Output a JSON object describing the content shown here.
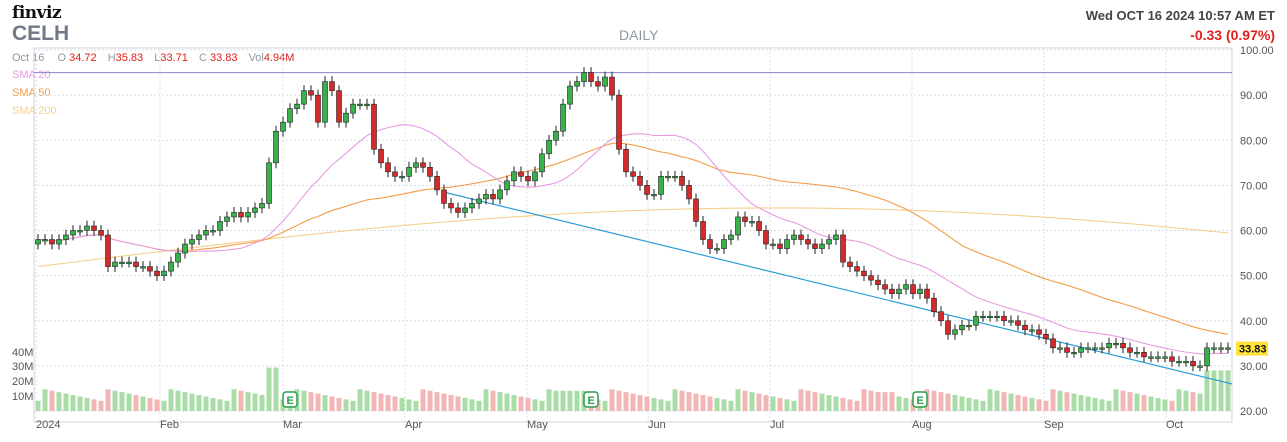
{
  "header": {
    "logo": "finviz",
    "ticker": "CELH",
    "period": "DAILY",
    "datetime": "Wed OCT 16 2024 10:57 AM ET",
    "change": "-0.33 (0.97%)"
  },
  "ohlc": {
    "date": "Oct 16",
    "o_label": "O",
    "o": "34.72",
    "h_label": "H",
    "h": "35.83",
    "l_label": "L",
    "l": "33.71",
    "c_label": "C",
    "c": "33.83",
    "vol_label": "Vol",
    "vol": "4.94M"
  },
  "legend": [
    {
      "label": "SMA 20",
      "color": "#e79be3"
    },
    {
      "label": "SMA 50",
      "color": "#f49c46"
    },
    {
      "label": "SMA 200",
      "color": "#f5cf8e"
    }
  ],
  "colors": {
    "up": "#36b24a",
    "down": "#d62a2a",
    "trendline": "#2b9fd8",
    "resistance": "#8a82c8",
    "last_price_bg": "#ffe33a",
    "grid": "#d8dde4",
    "vol_up": "#a9dca7",
    "vol_down": "#f3b6b6"
  },
  "chart_data": {
    "type": "candlestick",
    "title": "CELH DAILY",
    "x_labels": [
      "2024",
      "Feb",
      "Mar",
      "Apr",
      "May",
      "Jun",
      "Jul",
      "Aug",
      "Sep",
      "Oct"
    ],
    "y_ticks": [
      "100.00",
      "90.00",
      "80.00",
      "70.00",
      "60.00",
      "50.00",
      "40.00",
      "30.00",
      "20.00"
    ],
    "vol_ticks": [
      "40M",
      "30M",
      "20M",
      "10M"
    ],
    "last_price": "33.83",
    "resistance_level": 95,
    "trendline": {
      "from": [
        68.5,
        50.4
      ],
      "to": [
        26.0,
        28.5
      ]
    },
    "earnings_markers": [
      "E",
      "E",
      "E"
    ],
    "close": [
      58,
      58,
      57,
      58,
      59,
      60,
      60,
      61,
      60,
      59,
      52,
      53,
      53,
      53,
      52,
      52,
      51,
      50,
      51,
      53,
      55,
      57,
      58,
      59,
      60,
      60,
      62,
      63,
      64,
      63,
      64,
      65,
      66,
      75,
      82,
      84,
      87,
      88,
      91,
      90,
      84,
      93,
      91,
      84,
      86,
      88,
      88,
      88,
      78,
      75,
      73,
      72,
      72,
      74,
      75,
      74,
      72,
      69,
      66,
      65,
      64,
      65,
      66,
      67,
      68,
      67,
      69,
      71,
      73,
      72,
      71,
      73,
      77,
      80,
      82,
      88,
      92,
      93,
      95,
      93,
      92,
      94,
      90,
      78,
      73,
      72,
      70,
      68,
      68,
      72,
      72,
      72,
      70,
      67,
      62,
      58,
      56,
      56,
      58,
      59,
      63,
      62,
      62,
      60,
      57,
      57,
      56,
      58,
      59,
      58,
      57,
      56,
      57,
      58,
      59,
      53,
      52,
      51,
      50,
      49,
      48,
      47,
      46,
      47,
      48,
      46,
      47,
      45,
      42,
      40,
      37,
      38,
      39,
      39,
      41,
      41,
      41,
      41,
      40,
      40,
      39,
      38,
      38,
      37,
      36,
      34,
      34,
      33,
      33,
      34,
      34,
      34,
      34,
      35,
      35,
      34,
      33,
      33,
      32,
      32,
      32,
      32,
      31,
      31,
      31,
      30,
      30,
      34,
      34,
      34,
      34
    ]
  }
}
